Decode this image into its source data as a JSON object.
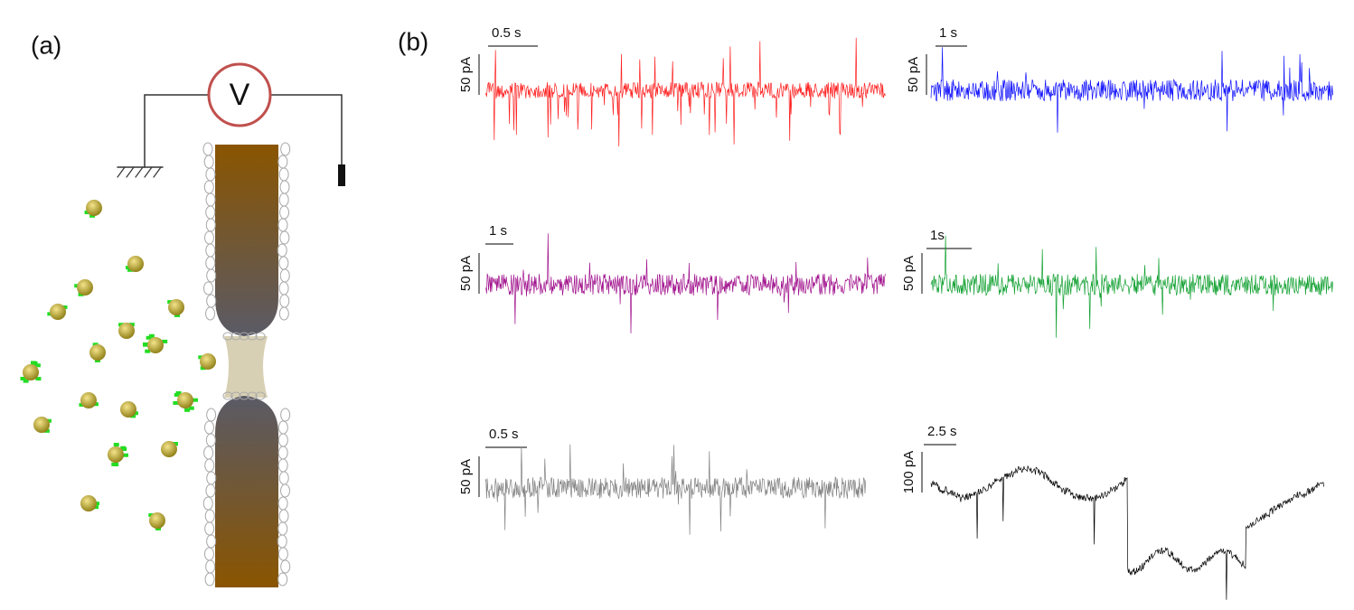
{
  "panel_a": {
    "label": "(a)",
    "meter": "V"
  },
  "panel_b": {
    "label": "(b)",
    "traces": [
      {
        "time_scale": "0.5 s",
        "current_scale": "50 pA",
        "color": "#ff2020"
      },
      {
        "time_scale": "1 s",
        "current_scale": "50 pA",
        "color": "#1010ff"
      },
      {
        "time_scale": "1 s",
        "current_scale": "50 pA",
        "color": "#a0108c"
      },
      {
        "time_scale": "1s",
        "current_scale": "50 pA",
        "color": "#10a030"
      },
      {
        "time_scale": "0.5 s",
        "current_scale": "50 pA",
        "color": "#808080"
      },
      {
        "time_scale": "2.5 s",
        "current_scale": "100 pA",
        "color": "#000000"
      }
    ]
  }
}
